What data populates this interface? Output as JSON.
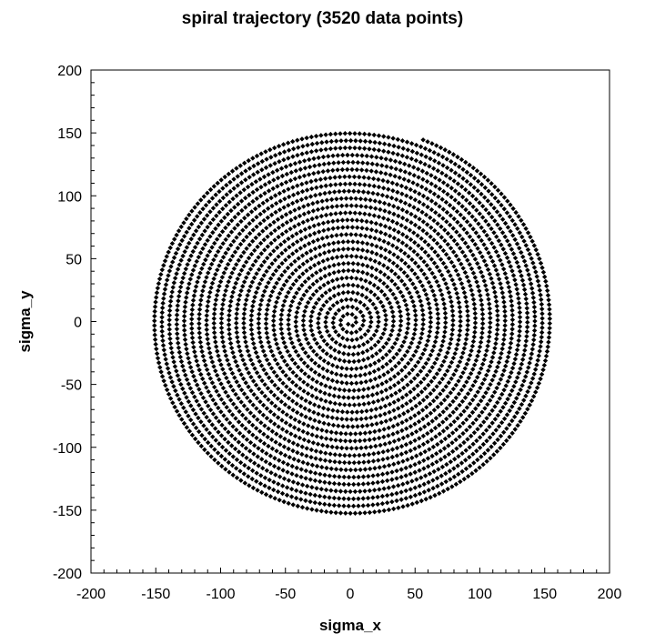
{
  "chart_data": {
    "type": "scatter",
    "title": "spiral trajectory (3520 data points)",
    "xlabel": "sigma_x",
    "ylabel": "sigma_y",
    "xlim": [
      -200,
      200
    ],
    "ylim": [
      -200,
      200
    ],
    "xticks": [
      -200,
      -150,
      -100,
      -50,
      0,
      50,
      100,
      150,
      200
    ],
    "yticks": [
      -200,
      -150,
      -100,
      -50,
      0,
      50,
      100,
      150,
      200
    ],
    "x_tick_labels": [
      "-200",
      "-150",
      "-100",
      "-50",
      "0",
      "50",
      "100",
      "150",
      "200"
    ],
    "y_tick_labels": [
      "-200",
      "-150",
      "-100",
      "-50",
      "0",
      "50",
      "100",
      "150",
      "200"
    ],
    "minor_tick_step": 10,
    "grid": false,
    "marker": "diamond",
    "marker_color": "#000000",
    "point_count": 3520,
    "spiral": {
      "center": [
        0,
        0
      ],
      "turns": 27,
      "outer_radius": 155,
      "end_point": [
        58,
        149
      ]
    }
  }
}
